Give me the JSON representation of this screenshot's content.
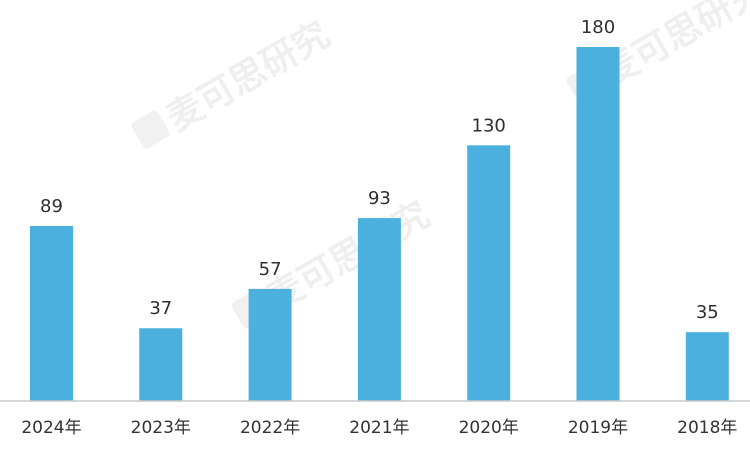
{
  "chart_data": {
    "type": "bar",
    "categories": [
      "2024年",
      "2023年",
      "2022年",
      "2021年",
      "2020年",
      "2019年",
      "2018年"
    ],
    "values": [
      89,
      37,
      57,
      93,
      130,
      180,
      35
    ],
    "title": "",
    "xlabel": "",
    "ylabel": "",
    "ylim": [
      0,
      180
    ],
    "grid": false,
    "legend": "none",
    "bar_color": "#4bb0de"
  },
  "watermark": {
    "text": "麦可思研究"
  }
}
